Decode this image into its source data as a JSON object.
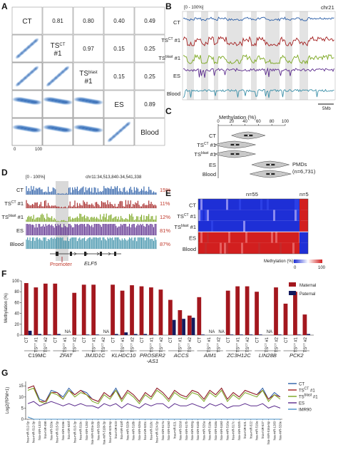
{
  "panels": {
    "A": "A",
    "B": "B",
    "C": "C",
    "D": "D",
    "E": "E",
    "F": "F",
    "G": "G"
  },
  "colors": {
    "ct": "#2c5fa8",
    "ts_ct": "#a31f1f",
    "ts_blast": "#7aa61e",
    "es": "#5a2a8c",
    "blood": "#3a8fa8",
    "maternal": "#a3171e",
    "paternal": "#141a5e",
    "imr90": "#4a90c8"
  },
  "panelA": {
    "names": [
      "CT",
      "TS#1",
      "TS#1",
      "ES",
      "Blood"
    ],
    "name_base": [
      "CT",
      "TS",
      "TS",
      "ES",
      "Blood"
    ],
    "name_sup": [
      "",
      "CT",
      "blast",
      "",
      ""
    ],
    "name_suffix": [
      "",
      "#1",
      "#1",
      "",
      ""
    ],
    "correlations": [
      [
        "0.81",
        "0.80",
        "0.40",
        "0.49"
      ],
      [
        "0.97",
        "0.15",
        "0.25"
      ],
      [
        "0.15",
        "0.25"
      ],
      [
        "0.89"
      ]
    ],
    "axis_ticks": [
      "0",
      "100"
    ]
  },
  "panelB": {
    "range_label": "[0 - 100%]",
    "chrom": "chr21",
    "scale": "5Mb",
    "tracks": [
      "CT",
      "TS",
      "TS",
      "ES",
      "Blood"
    ]
  },
  "panelC": {
    "title": "Methylation (%)",
    "ticks": [
      "0",
      "20",
      "40",
      "60",
      "80",
      "100"
    ],
    "rows": [
      "CT",
      "TS",
      "TS",
      "ES",
      "Blood"
    ],
    "note1": "PMDs",
    "note2": "(n=6,731)"
  },
  "panelD": {
    "range_label": "[0 - 100%]",
    "locus": "chr11:34,513,840-34,541,338",
    "tracks": [
      "CT",
      "TS",
      "TS",
      "ES",
      "Blood"
    ],
    "percents": [
      "15%",
      "11%",
      "12%",
      "81%",
      "87%"
    ],
    "promoter": "Promoter",
    "gene": "ELF5"
  },
  "panelE": {
    "n_left": "n=55",
    "n_right": "n=5",
    "rows": [
      "CT",
      "TS",
      "TS",
      "ES",
      "Blood"
    ],
    "legend_title": "Methylation (%)",
    "legend_ticks": [
      "0",
      "100"
    ]
  },
  "panelF": {
    "ylabel": "Methylation (%)",
    "yticks": [
      "0",
      "20",
      "40",
      "60",
      "80",
      "100"
    ],
    "legend": [
      "Maternal",
      "Paternal"
    ],
    "genes": [
      "C19MC",
      "ZFAT",
      "JMJD1C",
      "KLHDC10",
      "PROSER2\n-AS1",
      "ACCS",
      "AIM1",
      "ZC3H12C",
      "LIN28B",
      "PCK2"
    ],
    "gene_italic": [
      false,
      true,
      true,
      true,
      true,
      true,
      true,
      true,
      true,
      true
    ],
    "na": "NA"
  },
  "panelG": {
    "ylabel": "Log2(RPM+1)",
    "yticks": [
      "0",
      "5",
      "10",
      "15"
    ],
    "legend": [
      "CT",
      "TS #1",
      "TS #1",
      "ES",
      "IMR90"
    ],
    "mirs": [
      "hsa-miR-512-5p",
      "hsa-miR-512-3p",
      "hsa-miR-1323",
      "hsa-miR-498",
      "hsa-miR-520e",
      "hsa-miR-515-5p",
      "hsa-miR-519e",
      "hsa-miR-520f",
      "hsa-miR-515-3p",
      "hsa-miR-519c",
      "hsa-miR-1283",
      "hsa-miR-520a-3p",
      "hsa-miR-526b",
      "hsa-miR-519b-3p",
      "hsa-miR-525-5p",
      "hsa-miR-523",
      "hsa-miR-518f",
      "hsa-miR-520b",
      "hsa-miR-518b",
      "hsa-miR-526a",
      "hsa-miR-520c",
      "hsa-miR-518c",
      "hsa-miR-524-5p",
      "hsa-miR-517a",
      "hsa-miR-519d",
      "hsa-miR-521",
      "hsa-miR-520d",
      "hsa-miR-517b",
      "hsa-miR-520g",
      "hsa-miR-516b",
      "hsa-miR-526a",
      "hsa-miR-518e",
      "hsa-miR-518a",
      "hsa-miR-518d",
      "hsa-miR-516a",
      "hsa-miR-517c",
      "hsa-miR-520h",
      "hsa-miR-521",
      "hsa-miR-522",
      "hsa-miR-519a",
      "hsa-miR-527",
      "hsa-miR-516a-5p",
      "hsa-miR-1283",
      "hsa-miR-520e"
    ]
  },
  "chart_data": [
    {
      "type": "bar",
      "title": "F",
      "ylabel": "Methylation (%)",
      "ylim": [
        0,
        100
      ],
      "categories": [
        "C19MC CT",
        "C19MC TS#1",
        "C19MC TS#2",
        "ZFAT CT",
        "ZFAT TS#1",
        "ZFAT TS#2",
        "JMJD1C CT",
        "JMJD1C TS#1",
        "JMJD1C TS#2",
        "KLHDC10 CT",
        "KLHDC10 TS#1",
        "KLHDC10 TS#2",
        "PROSER2-AS1 CT",
        "PROSER2-AS1 TS#1",
        "PROSER2-AS1 TS#2",
        "ACCS CT",
        "ACCS TS#1",
        "ACCS TS#2",
        "AIM1 CT",
        "AIM1 TS#1",
        "AIM1 TS#2",
        "ZC3H12C CT",
        "ZC3H12C TS#1",
        "ZC3H12C TS#2",
        "LIN28B CT",
        "LIN28B TS#1",
        "LIN28B TS#2",
        "PCK2 CT",
        "PCK2 TS#1",
        "PCK2 TS#2"
      ],
      "series": [
        {
          "name": "Maternal",
          "values": [
            96,
            88,
            95,
            95,
            null,
            78,
            93,
            93,
            null,
            93,
            82,
            92,
            90,
            88,
            84,
            65,
            46,
            36,
            70,
            null,
            null,
            82,
            90,
            90,
            80,
            null,
            88,
            58,
            80,
            38
          ]
        },
        {
          "name": "Paternal",
          "values": [
            8,
            2,
            1,
            2,
            6,
            null,
            1,
            1,
            null,
            2,
            5,
            2,
            2,
            1,
            0,
            28,
            30,
            32,
            1,
            null,
            null,
            1,
            1,
            1,
            1,
            null,
            1,
            0,
            1,
            2
          ]
        }
      ]
    },
    {
      "type": "line",
      "title": "G",
      "ylabel": "Log2(RPM+1)",
      "ylim": [
        0,
        17
      ],
      "series": [
        {
          "name": "CT",
          "values": [
            14,
            15,
            9,
            8,
            13,
            12,
            10,
            14,
            11,
            13,
            12,
            9,
            8,
            12,
            10,
            14,
            9,
            13,
            11,
            8,
            12,
            10,
            14,
            12,
            9,
            13,
            11,
            10,
            13,
            12,
            9,
            13,
            11,
            14,
            9,
            12,
            10,
            13,
            12,
            11,
            14,
            9,
            12,
            10
          ]
        },
        {
          "name": "TS #1",
          "values": [
            14,
            15,
            8,
            8,
            12,
            12,
            9,
            13,
            11,
            13,
            11,
            9,
            8,
            12,
            10,
            13,
            9,
            13,
            11,
            8,
            12,
            10,
            14,
            12,
            9,
            13,
            11,
            10,
            13,
            12,
            9,
            13,
            11,
            14,
            9,
            12,
            10,
            13,
            12,
            11,
            13,
            9,
            11,
            10
          ]
        },
        {
          "name": "TS #1",
          "values": [
            13,
            14,
            8,
            7,
            12,
            11,
            9,
            13,
            10,
            12,
            11,
            8,
            7,
            11,
            9,
            13,
            8,
            12,
            10,
            7,
            11,
            9,
            13,
            11,
            8,
            12,
            10,
            9,
            12,
            11,
            8,
            12,
            10,
            13,
            8,
            11,
            9,
            12,
            11,
            10,
            13,
            8,
            11,
            9
          ]
        },
        {
          "name": "ES",
          "values": [
            7,
            8,
            6,
            7,
            8,
            7,
            6,
            7,
            6,
            7,
            6,
            6,
            5,
            7,
            6,
            7,
            5,
            7,
            6,
            5,
            7,
            6,
            7,
            7,
            5,
            7,
            6,
            6,
            7,
            6,
            5,
            7,
            6,
            7,
            5,
            6,
            6,
            7,
            6,
            6,
            7,
            5,
            6,
            5
          ]
        },
        {
          "name": "IMR90",
          "values": [
            1,
            0,
            0,
            0,
            0,
            0,
            0,
            0,
            0,
            0,
            0,
            0,
            0,
            0,
            0,
            0,
            0,
            0,
            0,
            0,
            0,
            0,
            0,
            0,
            0,
            0,
            0,
            0,
            0,
            0,
            0,
            0,
            0,
            0,
            0,
            0,
            0,
            0,
            0,
            0,
            0,
            0,
            0,
            0
          ]
        }
      ]
    }
  ]
}
